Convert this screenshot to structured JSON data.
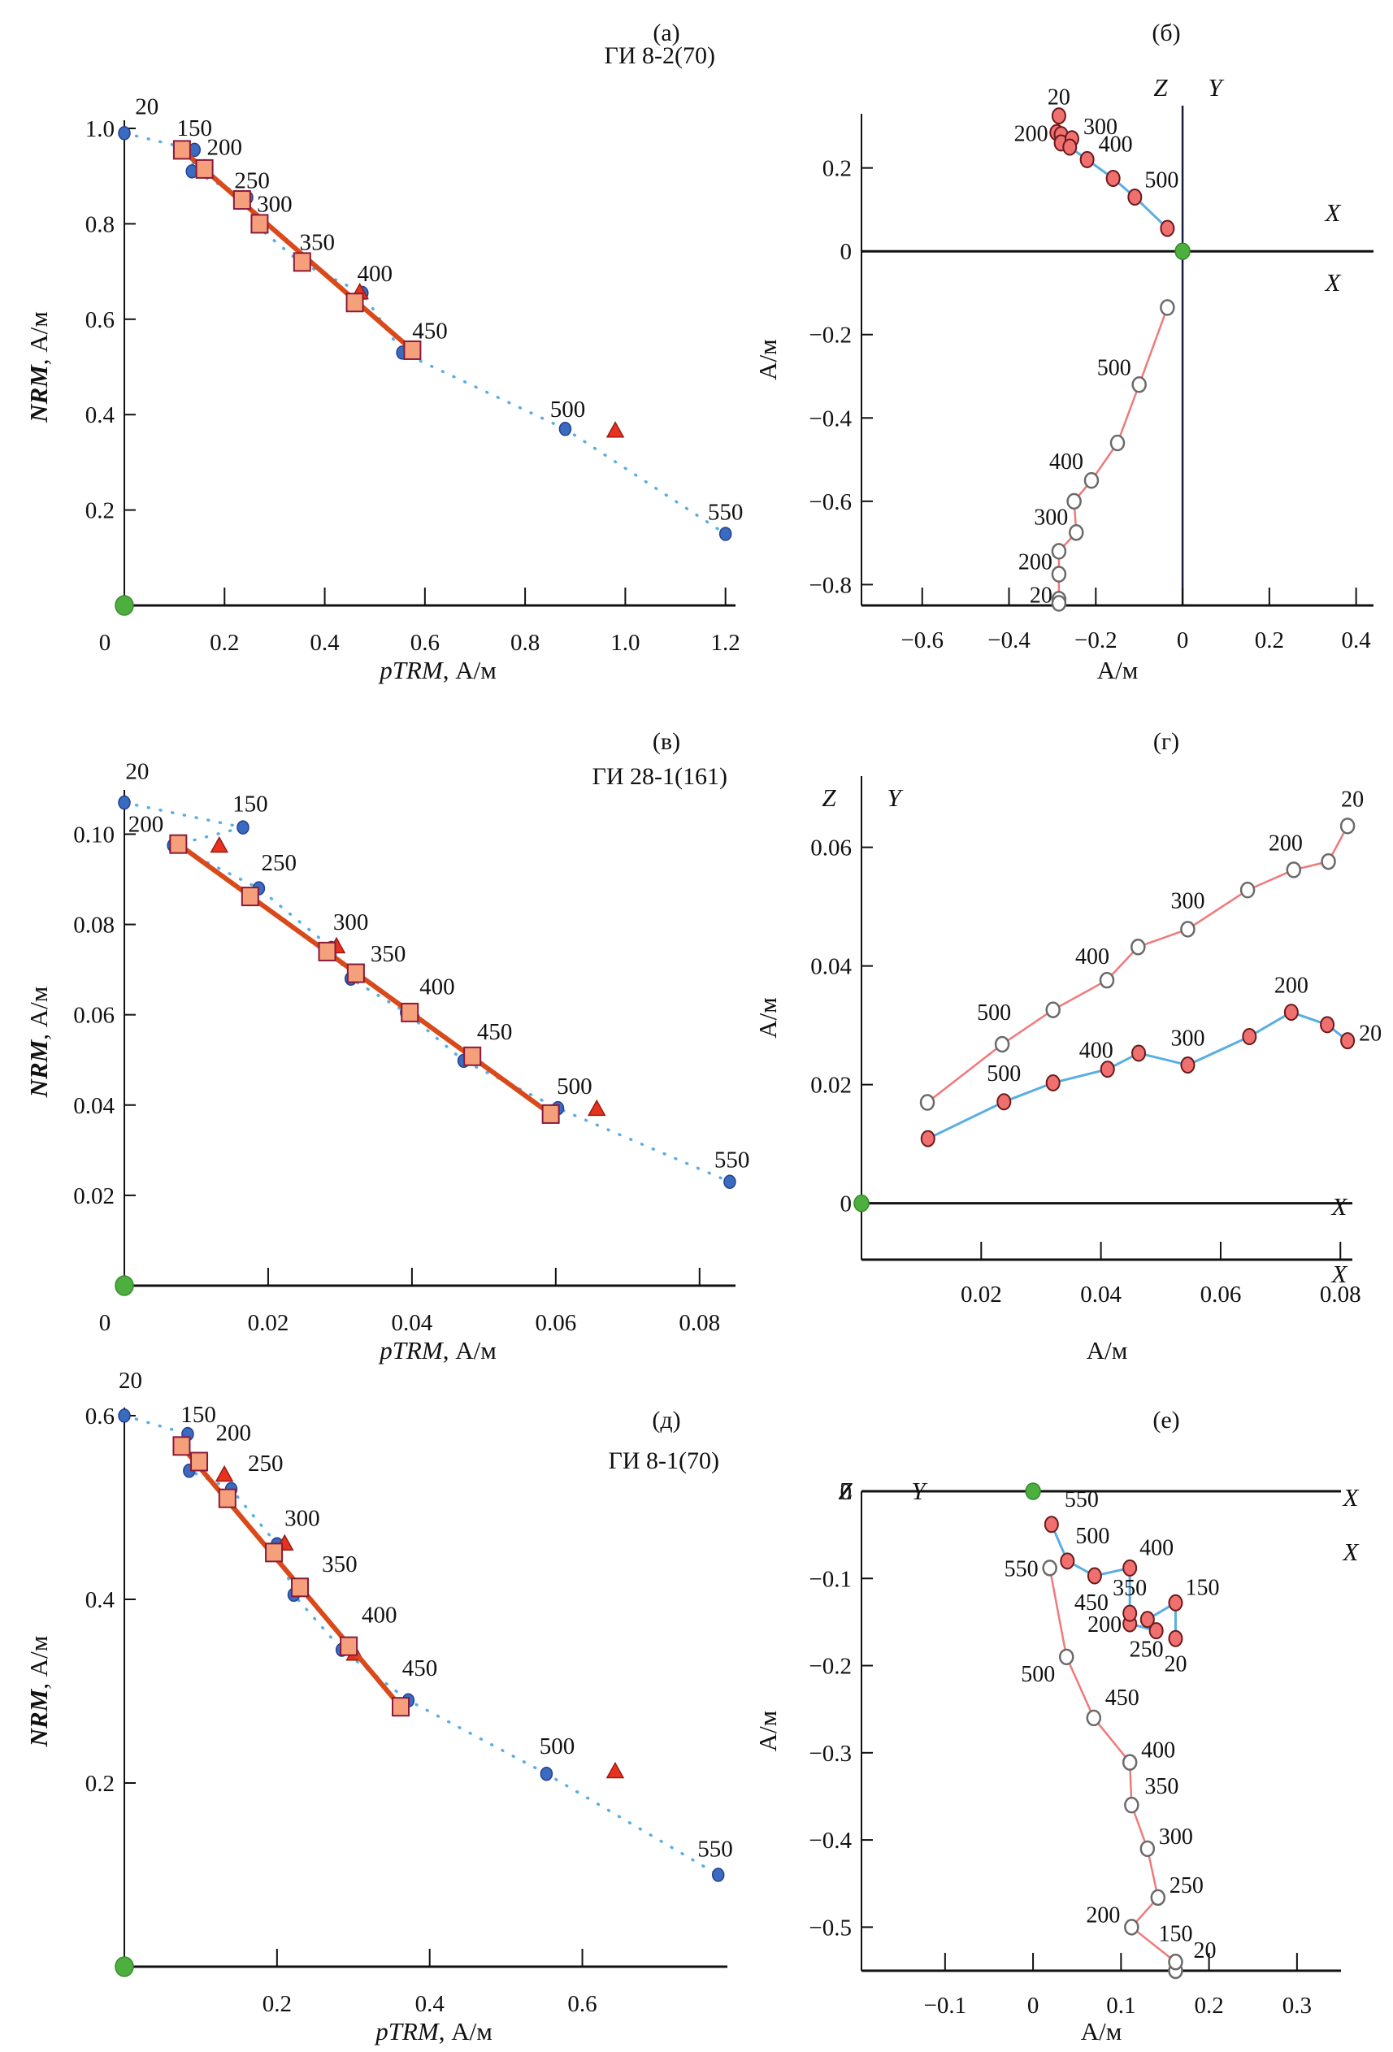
{
  "chart_data": [
    {
      "id": "a",
      "panel_label": "(а)",
      "type": "scatter",
      "subtype": "arai",
      "sample_label": "ГИ 8-2(70)",
      "xlabel_italic": "pTRM",
      "xlabel_unit": ", А/м",
      "ylabel_italic": "NRM",
      "ylabel_unit": ", А/м",
      "xlim": [
        0,
        1.22
      ],
      "ylim": [
        0,
        1.0
      ],
      "xticks": [
        0,
        0.2,
        0.4,
        0.6,
        0.8,
        1.0,
        1.2
      ],
      "xtick_labels": [
        "0",
        "0.2",
        "0.4",
        "0.6",
        "0.8",
        "1.0",
        "1.2"
      ],
      "yticks": [
        0.2,
        0.4,
        0.6,
        0.8,
        1.0
      ],
      "ytick_labels": [
        "0.2",
        "0.4",
        "0.6",
        "0.8",
        "1.0"
      ],
      "circles": [
        {
          "t": "20",
          "x": 0.0,
          "y": 0.99
        },
        {
          "t": "150",
          "x": 0.14,
          "y": 0.955
        },
        {
          "t": "200",
          "x": 0.135,
          "y": 0.91
        },
        {
          "t": "250",
          "x": 0.245,
          "y": 0.855
        },
        {
          "t": "300",
          "x": 0.265,
          "y": 0.795
        },
        {
          "t": "350",
          "x": 0.35,
          "y": 0.72
        },
        {
          "t": "400",
          "x": 0.475,
          "y": 0.655
        },
        {
          "t": "450",
          "x": 0.555,
          "y": 0.53
        },
        {
          "t": "500",
          "x": 0.88,
          "y": 0.37
        },
        {
          "t": "550",
          "x": 1.2,
          "y": 0.15
        }
      ],
      "squares": [
        {
          "x": 0.115,
          "y": 0.955
        },
        {
          "x": 0.16,
          "y": 0.915
        },
        {
          "x": 0.235,
          "y": 0.85
        },
        {
          "x": 0.27,
          "y": 0.8
        },
        {
          "x": 0.355,
          "y": 0.72
        },
        {
          "x": 0.46,
          "y": 0.635
        },
        {
          "x": 0.575,
          "y": 0.535
        }
      ],
      "triangles": [
        {
          "x": 0.16,
          "y": 0.915
        },
        {
          "x": 0.27,
          "y": 0.795
        },
        {
          "x": 0.47,
          "y": 0.655
        },
        {
          "x": 0.98,
          "y": 0.365
        }
      ],
      "fit_line": [
        [
          0.115,
          0.955
        ],
        [
          0.575,
          0.535
        ]
      ],
      "label_points": [
        {
          "t": "20",
          "x": 0.045,
          "y": 1.03
        },
        {
          "t": "150",
          "x": 0.14,
          "y": 0.985
        },
        {
          "t": "200",
          "x": 0.2,
          "y": 0.945
        },
        {
          "t": "250",
          "x": 0.255,
          "y": 0.875
        },
        {
          "t": "300",
          "x": 0.3,
          "y": 0.825
        },
        {
          "t": "350",
          "x": 0.385,
          "y": 0.745
        },
        {
          "t": "400",
          "x": 0.5,
          "y": 0.68
        },
        {
          "t": "450",
          "x": 0.61,
          "y": 0.56
        },
        {
          "t": "500",
          "x": 0.885,
          "y": 0.395
        },
        {
          "t": "550",
          "x": 1.2,
          "y": 0.18
        }
      ]
    },
    {
      "id": "b",
      "panel_label": "(б)",
      "type": "line",
      "subtype": "zijderveld",
      "xlabel": "А/м",
      "ylabel": "А/м",
      "xlim": [
        -0.74,
        0.44
      ],
      "ylim": [
        -0.85,
        0.33
      ],
      "xticks": [
        -0.6,
        -0.4,
        -0.2,
        0,
        0.2,
        0.4
      ],
      "xtick_labels": [
        "−0.6",
        "−0.4",
        "−0.2",
        "0",
        "0.2",
        "0.4"
      ],
      "yticks": [
        -0.8,
        -0.6,
        -0.4,
        -0.2,
        0,
        0.2
      ],
      "ytick_labels": [
        "−0.8",
        "−0.6",
        "−0.4",
        "−0.2",
        "0",
        "0.2"
      ],
      "axis_labels": {
        "z": "Z",
        "y": "Y",
        "x_upper": "X",
        "x_lower": "X"
      },
      "horizontal_projection": [
        {
          "t": "20",
          "x": -0.285,
          "y": 0.325
        },
        {
          "t": "",
          "x": -0.29,
          "y": 0.285
        },
        {
          "t": "200",
          "x": -0.28,
          "y": 0.28
        },
        {
          "t": "",
          "x": -0.28,
          "y": 0.26
        },
        {
          "t": "300",
          "x": -0.255,
          "y": 0.27
        },
        {
          "t": "",
          "x": -0.26,
          "y": 0.25
        },
        {
          "t": "400",
          "x": -0.22,
          "y": 0.22
        },
        {
          "t": "",
          "x": -0.16,
          "y": 0.175
        },
        {
          "t": "500",
          "x": -0.11,
          "y": 0.13
        },
        {
          "t": "",
          "x": -0.035,
          "y": 0.055
        }
      ],
      "vertical_projection": [
        {
          "t": "20",
          "x": -0.285,
          "y": -0.835
        },
        {
          "t": "",
          "x": -0.285,
          "y": -0.845
        },
        {
          "t": "200",
          "x": -0.285,
          "y": -0.775
        },
        {
          "t": "",
          "x": -0.285,
          "y": -0.72
        },
        {
          "t": "300",
          "x": -0.245,
          "y": -0.675
        },
        {
          "t": "",
          "x": -0.25,
          "y": -0.6
        },
        {
          "t": "400",
          "x": -0.21,
          "y": -0.55
        },
        {
          "t": "",
          "x": -0.15,
          "y": -0.46
        },
        {
          "t": "500",
          "x": -0.1,
          "y": -0.32
        },
        {
          "t": "",
          "x": -0.035,
          "y": -0.135
        }
      ],
      "origin": {
        "x": 0,
        "y": 0
      }
    },
    {
      "id": "c",
      "panel_label": "(в)",
      "type": "scatter",
      "subtype": "arai",
      "sample_label": "ГИ 28-1(161)",
      "xlabel_italic": "pTRM",
      "xlabel_unit": ", А/м",
      "ylabel_italic": "NRM",
      "ylabel_unit": ", А/м",
      "xlim": [
        0,
        0.085
      ],
      "ylim": [
        0,
        0.108
      ],
      "xticks": [
        0,
        0.02,
        0.04,
        0.06,
        0.08
      ],
      "xtick_labels": [
        "0",
        "0.02",
        "0.04",
        "0.06",
        "0.08"
      ],
      "yticks": [
        0.02,
        0.04,
        0.06,
        0.08,
        0.1
      ],
      "ytick_labels": [
        "0.02",
        "0.04",
        "0.06",
        "0.08",
        "0.10"
      ],
      "circles": [
        {
          "t": "20",
          "x": 0.0,
          "y": 0.107
        },
        {
          "t": "150",
          "x": 0.0165,
          "y": 0.1015
        },
        {
          "t": "200",
          "x": 0.0068,
          "y": 0.0975
        },
        {
          "t": "250",
          "x": 0.0187,
          "y": 0.088
        },
        {
          "t": "300",
          "x": 0.0288,
          "y": 0.0748
        },
        {
          "t": "350",
          "x": 0.0315,
          "y": 0.068
        },
        {
          "t": "400",
          "x": 0.0392,
          "y": 0.0605
        },
        {
          "t": "450",
          "x": 0.0472,
          "y": 0.0498
        },
        {
          "t": "500",
          "x": 0.0603,
          "y": 0.0393
        },
        {
          "t": "550",
          "x": 0.0842,
          "y": 0.023
        }
      ],
      "squares": [
        {
          "x": 0.0075,
          "y": 0.0978
        },
        {
          "x": 0.0175,
          "y": 0.0862
        },
        {
          "x": 0.0282,
          "y": 0.074
        },
        {
          "x": 0.0322,
          "y": 0.0692
        },
        {
          "x": 0.0397,
          "y": 0.0605
        },
        {
          "x": 0.0484,
          "y": 0.0508
        },
        {
          "x": 0.0593,
          "y": 0.038
        }
      ],
      "triangles": [
        {
          "x": 0.0132,
          "y": 0.0973
        },
        {
          "x": 0.0295,
          "y": 0.075
        },
        {
          "x": 0.0402,
          "y": 0.06
        },
        {
          "x": 0.0657,
          "y": 0.039
        }
      ],
      "fit_line": [
        [
          0.0075,
          0.0978
        ],
        [
          0.0593,
          0.038
        ]
      ],
      "label_points": [
        {
          "t": "20",
          "x": 0.0018,
          "y": 0.1122
        },
        {
          "t": "150",
          "x": 0.0175,
          "y": 0.105
        },
        {
          "t": "200",
          "x": 0.003,
          "y": 0.1005
        },
        {
          "t": "250",
          "x": 0.0215,
          "y": 0.092
        },
        {
          "t": "300",
          "x": 0.0315,
          "y": 0.0788
        },
        {
          "t": "350",
          "x": 0.0367,
          "y": 0.0718
        },
        {
          "t": "400",
          "x": 0.0435,
          "y": 0.0645
        },
        {
          "t": "450",
          "x": 0.0515,
          "y": 0.0545
        },
        {
          "t": "500",
          "x": 0.0626,
          "y": 0.0425
        },
        {
          "t": "550",
          "x": 0.0845,
          "y": 0.0262
        }
      ]
    },
    {
      "id": "d",
      "panel_label": "(г)",
      "type": "line",
      "subtype": "zijderveld",
      "xlabel": "А/м",
      "ylabel": "А/м",
      "xlim": [
        0,
        0.082
      ],
      "ylim": [
        -0.0095,
        0.072
      ],
      "xticks": [
        0.02,
        0.04,
        0.06,
        0.08
      ],
      "xtick_labels": [
        "0.02",
        "0.04",
        "0.06",
        "0.08"
      ],
      "yticks": [
        0,
        0.02,
        0.04,
        0.06
      ],
      "ytick_labels": [
        "0",
        "0.02",
        "0.04",
        "0.06"
      ],
      "axis_labels": {
        "z": "Z",
        "y": "Y",
        "x_upper": "X",
        "x_lower": "X"
      },
      "horizontal_projection": [
        {
          "t": "20",
          "x": 0.0812,
          "y": 0.0274
        },
        {
          "t": "",
          "x": 0.0778,
          "y": 0.0301
        },
        {
          "t": "200",
          "x": 0.0718,
          "y": 0.0322
        },
        {
          "t": "",
          "x": 0.0648,
          "y": 0.0281
        },
        {
          "t": "300",
          "x": 0.0545,
          "y": 0.0233
        },
        {
          "t": "",
          "x": 0.0463,
          "y": 0.0253
        },
        {
          "t": "400",
          "x": 0.0411,
          "y": 0.0226
        },
        {
          "t": "",
          "x": 0.032,
          "y": 0.0203
        },
        {
          "t": "500",
          "x": 0.0238,
          "y": 0.0171
        },
        {
          "t": "",
          "x": 0.0111,
          "y": 0.0109
        }
      ],
      "vertical_projection": [
        {
          "t": "20",
          "x": 0.0812,
          "y": 0.0636
        },
        {
          "t": "",
          "x": 0.078,
          "y": 0.0576
        },
        {
          "t": "200",
          "x": 0.0722,
          "y": 0.0562
        },
        {
          "t": "",
          "x": 0.0645,
          "y": 0.0528
        },
        {
          "t": "300",
          "x": 0.0545,
          "y": 0.0462
        },
        {
          "t": "",
          "x": 0.0462,
          "y": 0.0432
        },
        {
          "t": "400",
          "x": 0.041,
          "y": 0.0376
        },
        {
          "t": "",
          "x": 0.032,
          "y": 0.0326
        },
        {
          "t": "500",
          "x": 0.0235,
          "y": 0.0268
        },
        {
          "t": "",
          "x": 0.011,
          "y": 0.017
        }
      ],
      "origin": {
        "x": 0,
        "y": 0
      }
    },
    {
      "id": "e",
      "panel_label": "(д)",
      "type": "scatter",
      "subtype": "arai",
      "sample_label": "ГИ 8-1(70)",
      "xlabel_italic": "pTRM",
      "xlabel_unit": ", А/м",
      "ylabel_italic": "NRM",
      "ylabel_unit": ", А/м",
      "xlim": [
        0,
        0.79
      ],
      "ylim": [
        0,
        0.6
      ],
      "xticks": [
        0.2,
        0.4,
        0.6
      ],
      "xtick_labels": [
        "0.2",
        "0.4",
        "0.6"
      ],
      "yticks": [
        0.2,
        0.4,
        0.6
      ],
      "ytick_labels": [
        "0.2",
        "0.4",
        "0.6"
      ],
      "circles": [
        {
          "t": "20",
          "x": 0.0,
          "y": 0.6
        },
        {
          "t": "150",
          "x": 0.083,
          "y": 0.58
        },
        {
          "t": "200",
          "x": 0.085,
          "y": 0.54
        },
        {
          "t": "250",
          "x": 0.14,
          "y": 0.52
        },
        {
          "t": "300",
          "x": 0.2,
          "y": 0.46
        },
        {
          "t": "350",
          "x": 0.222,
          "y": 0.405
        },
        {
          "t": "400",
          "x": 0.285,
          "y": 0.345
        },
        {
          "t": "450",
          "x": 0.372,
          "y": 0.29
        },
        {
          "t": "500",
          "x": 0.553,
          "y": 0.21
        },
        {
          "t": "550",
          "x": 0.778,
          "y": 0.1
        }
      ],
      "squares": [
        {
          "x": 0.075,
          "y": 0.567
        },
        {
          "x": 0.098,
          "y": 0.55
        },
        {
          "x": 0.135,
          "y": 0.51
        },
        {
          "x": 0.196,
          "y": 0.451
        },
        {
          "x": 0.23,
          "y": 0.413
        },
        {
          "x": 0.294,
          "y": 0.349
        },
        {
          "x": 0.362,
          "y": 0.283
        }
      ],
      "triangles": [
        {
          "x": 0.131,
          "y": 0.535
        },
        {
          "x": 0.21,
          "y": 0.46
        },
        {
          "x": 0.302,
          "y": 0.34
        },
        {
          "x": 0.643,
          "y": 0.212
        }
      ],
      "fit_line": [
        [
          0.075,
          0.567
        ],
        [
          0.362,
          0.283
        ]
      ],
      "label_points": [
        {
          "t": "20",
          "x": 0.008,
          "y": 0.63
        },
        {
          "t": "150",
          "x": 0.097,
          "y": 0.593
        },
        {
          "t": "200",
          "x": 0.143,
          "y": 0.573
        },
        {
          "t": "250",
          "x": 0.185,
          "y": 0.54
        },
        {
          "t": "300",
          "x": 0.233,
          "y": 0.48
        },
        {
          "t": "350",
          "x": 0.282,
          "y": 0.43
        },
        {
          "t": "400",
          "x": 0.334,
          "y": 0.375
        },
        {
          "t": "450",
          "x": 0.387,
          "y": 0.317
        },
        {
          "t": "500",
          "x": 0.567,
          "y": 0.232
        },
        {
          "t": "550",
          "x": 0.774,
          "y": 0.12
        }
      ]
    },
    {
      "id": "f",
      "panel_label": "(е)",
      "type": "line",
      "subtype": "zijderveld",
      "xlabel": "А/м",
      "ylabel": "А/м",
      "xlim": [
        -0.195,
        0.35
      ],
      "ylim": [
        -0.55,
        0.0
      ],
      "xticks": [
        -0.1,
        0,
        0.1,
        0.2,
        0.3
      ],
      "xtick_labels": [
        "−0.1",
        "0",
        "0.1",
        "0.2",
        "0.3"
      ],
      "yticks": [
        -0.5,
        -0.4,
        -0.3,
        -0.2,
        -0.1,
        0
      ],
      "ytick_labels": [
        "−0.5",
        "−0.4",
        "−0.3",
        "−0.2",
        "−0.1",
        "0"
      ],
      "axis_labels": {
        "z": "Z",
        "y": "Y",
        "x_upper": "X",
        "x_lower": "X"
      },
      "horizontal_projection": [
        {
          "t": "20",
          "x": 0.162,
          "y": -0.169
        },
        {
          "t": "150",
          "x": 0.162,
          "y": -0.128
        },
        {
          "t": "",
          "x": 0.13,
          "y": -0.147
        },
        {
          "t": "250",
          "x": 0.14,
          "y": -0.16
        },
        {
          "t": "200",
          "x": 0.11,
          "y": -0.152
        },
        {
          "t": "350",
          "x": 0.11,
          "y": -0.14
        },
        {
          "t": "400",
          "x": 0.11,
          "y": -0.088
        },
        {
          "t": "450",
          "x": 0.07,
          "y": -0.097
        },
        {
          "t": "500",
          "x": 0.039,
          "y": -0.08
        },
        {
          "t": "550",
          "x": 0.021,
          "y": -0.038
        }
      ],
      "vertical_projection": [
        {
          "t": "20",
          "x": 0.162,
          "y": -0.55
        },
        {
          "t": "150",
          "x": 0.162,
          "y": -0.54
        },
        {
          "t": "200",
          "x": 0.112,
          "y": -0.5
        },
        {
          "t": "250",
          "x": 0.142,
          "y": -0.466
        },
        {
          "t": "300",
          "x": 0.13,
          "y": -0.41
        },
        {
          "t": "350",
          "x": 0.112,
          "y": -0.36
        },
        {
          "t": "400",
          "x": 0.11,
          "y": -0.311
        },
        {
          "t": "450",
          "x": 0.069,
          "y": -0.26
        },
        {
          "t": "500",
          "x": 0.038,
          "y": -0.19
        },
        {
          "t": "550",
          "x": 0.019,
          "y": -0.088
        }
      ],
      "origin": {
        "x": 0,
        "y": 0
      }
    }
  ],
  "colors": {
    "circle_fill": "#3a6bc0",
    "circle_stroke": "#24408f",
    "square_fill": "#f5a07a",
    "square_stroke": "#8a1a3a",
    "triangle_fill": "#e8321f",
    "triangle_stroke": "#9a1a10",
    "fit_line": "#d9491a",
    "dotted_line": "#5aaee3",
    "horiz_line": "#5aaee3",
    "vert_line": "#f07a7a",
    "filled_dot": "#f07070",
    "filled_dot_stroke": "#6a1a1a",
    "open_dot_stroke": "#6a6a6a",
    "origin_dot": "#4caf3e",
    "axis": "#111111"
  }
}
